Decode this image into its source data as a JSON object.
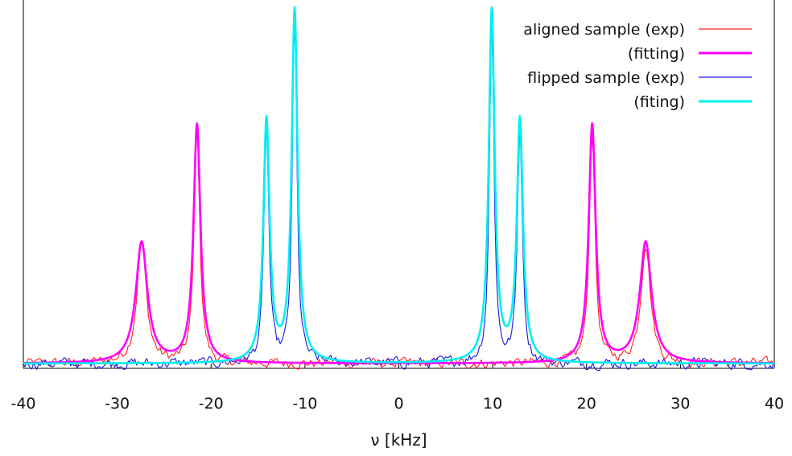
{
  "chart_data": {
    "type": "line",
    "title": "",
    "xlabel": "ν [kHz]",
    "ylabel": "",
    "xlim": [
      -40,
      40
    ],
    "ylim": [
      0,
      1.0
    ],
    "xticks": [
      -40,
      -30,
      -20,
      -10,
      0,
      10,
      20,
      30,
      40
    ],
    "grid": false,
    "legend_position": "top-right",
    "series": [
      {
        "name": "aligned sample (exp)",
        "color": "#ff2020",
        "style": "noisy",
        "peaks": [
          {
            "x": -27.4,
            "h": 0.34,
            "w": 0.6
          },
          {
            "x": -21.5,
            "h": 0.67,
            "w": 0.35
          },
          {
            "x": 20.6,
            "h": 0.67,
            "w": 0.35
          },
          {
            "x": 26.3,
            "h": 0.34,
            "w": 0.6
          }
        ],
        "noise": 0.012
      },
      {
        "name": "(fitting)",
        "color": "#ff00ff",
        "style": "smooth",
        "peaks": [
          {
            "x": -27.4,
            "h": 0.34,
            "w": 0.75
          },
          {
            "x": -21.5,
            "h": 0.67,
            "w": 0.45
          },
          {
            "x": 20.6,
            "h": 0.67,
            "w": 0.45
          },
          {
            "x": 26.3,
            "h": 0.34,
            "w": 0.75
          }
        ],
        "noise": 0
      },
      {
        "name": "flipped sample (exp)",
        "color": "#1a1adc",
        "style": "noisy",
        "peaks": [
          {
            "x": -14.1,
            "h": 0.68,
            "w": 0.3
          },
          {
            "x": -11.1,
            "h": 0.99,
            "w": 0.28
          },
          {
            "x": 9.9,
            "h": 0.99,
            "w": 0.28
          },
          {
            "x": 12.9,
            "h": 0.68,
            "w": 0.3
          }
        ],
        "noise": 0.013
      },
      {
        "name": "(fiting)",
        "color": "#00f0f0",
        "style": "smooth",
        "peaks": [
          {
            "x": -14.1,
            "h": 0.68,
            "w": 0.4
          },
          {
            "x": -11.1,
            "h": 0.99,
            "w": 0.38
          },
          {
            "x": 9.9,
            "h": 0.99,
            "w": 0.38
          },
          {
            "x": 12.9,
            "h": 0.68,
            "w": 0.4
          }
        ],
        "noise": 0
      }
    ]
  }
}
